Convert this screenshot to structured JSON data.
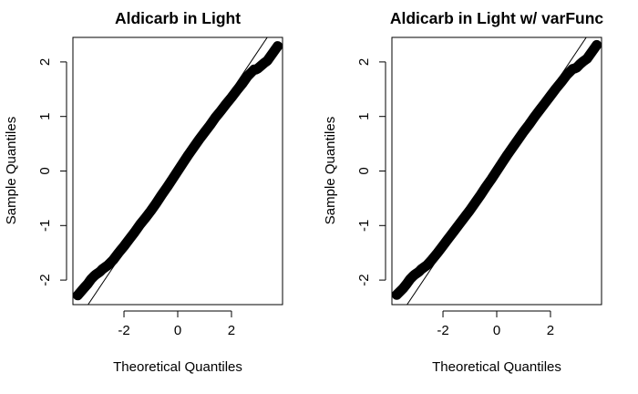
{
  "figure": {
    "background": "#ffffff",
    "ink": "#000000"
  },
  "chart_data": [
    {
      "type": "scatter",
      "subtype": "normal-qq",
      "title": "Aldicarb in Light",
      "xlabel": "Theoretical Quantiles",
      "ylabel": "Sample Quantiles",
      "xlim": [
        -3.9,
        3.9
      ],
      "ylim": [
        -2.45,
        2.45
      ],
      "xticks": [
        -2,
        0,
        2
      ],
      "xtick_labels": [
        "-2",
        "0",
        "2"
      ],
      "yticks": [
        -2,
        -1,
        0,
        1,
        2
      ],
      "ytick_labels": [
        "-2",
        "-1",
        "0",
        "1",
        "2"
      ],
      "grid": false,
      "marker": "open-circle",
      "reference_line": {
        "intercept": 0.002,
        "slope": 0.735
      },
      "series": [
        {
          "x": [
            -3.72,
            -3.48,
            -3.35,
            -3.22,
            -3.12,
            -3.05,
            -2.99,
            -2.93,
            -2.88,
            -2.8,
            -2.6,
            -2.4,
            -2.2,
            -2.0,
            -1.8,
            -1.6,
            -1.4,
            -1.2,
            -1.0,
            -0.8,
            -0.6,
            -0.4,
            -0.2,
            0.0,
            0.2,
            0.4,
            0.6,
            0.8,
            1.0,
            1.2,
            1.4,
            1.6,
            1.8,
            2.0,
            2.2,
            2.4,
            2.6,
            2.76,
            2.84,
            2.9,
            2.98,
            3.1,
            3.22,
            3.33,
            3.72
          ],
          "y": [
            -2.28,
            -2.14,
            -2.07,
            -1.98,
            -1.93,
            -1.9,
            -1.88,
            -1.86,
            -1.84,
            -1.8,
            -1.73,
            -1.63,
            -1.5,
            -1.38,
            -1.25,
            -1.12,
            -0.98,
            -0.86,
            -0.73,
            -0.59,
            -0.44,
            -0.3,
            -0.15,
            0.0,
            0.15,
            0.3,
            0.44,
            0.58,
            0.71,
            0.84,
            0.98,
            1.1,
            1.23,
            1.35,
            1.48,
            1.6,
            1.74,
            1.82,
            1.86,
            1.86,
            1.88,
            1.93,
            1.98,
            2.02,
            2.29
          ]
        }
      ]
    },
    {
      "type": "scatter",
      "subtype": "normal-qq",
      "title": "Aldicarb in Light w/ varFunc",
      "xlabel": "Theoretical Quantiles",
      "ylabel": "Sample Quantiles",
      "xlim": [
        -3.9,
        3.9
      ],
      "ylim": [
        -2.45,
        2.45
      ],
      "xticks": [
        -2,
        0,
        2
      ],
      "xtick_labels": [
        "-2",
        "0",
        "2"
      ],
      "yticks": [
        -2,
        -1,
        0,
        1,
        2
      ],
      "ytick_labels": [
        "-2",
        "-1",
        "0",
        "1",
        "2"
      ],
      "grid": false,
      "marker": "open-circle",
      "reference_line": {
        "intercept": 0.002,
        "slope": 0.735
      },
      "series": [
        {
          "x": [
            -3.72,
            -3.48,
            -3.35,
            -3.22,
            -3.12,
            -3.05,
            -2.99,
            -2.93,
            -2.88,
            -2.8,
            -2.6,
            -2.4,
            -2.2,
            -2.0,
            -1.8,
            -1.6,
            -1.4,
            -1.2,
            -1.0,
            -0.8,
            -0.6,
            -0.4,
            -0.2,
            0.0,
            0.2,
            0.4,
            0.6,
            0.8,
            1.0,
            1.2,
            1.4,
            1.6,
            1.8,
            2.0,
            2.2,
            2.4,
            2.6,
            2.74,
            2.82,
            2.9,
            2.98,
            3.1,
            3.22,
            3.36,
            3.72
          ],
          "y": [
            -2.27,
            -2.15,
            -2.07,
            -1.98,
            -1.93,
            -1.9,
            -1.88,
            -1.86,
            -1.84,
            -1.8,
            -1.73,
            -1.62,
            -1.5,
            -1.37,
            -1.24,
            -1.11,
            -0.98,
            -0.85,
            -0.72,
            -0.58,
            -0.44,
            -0.29,
            -0.15,
            0.0,
            0.15,
            0.3,
            0.44,
            0.58,
            0.72,
            0.85,
            0.99,
            1.12,
            1.25,
            1.38,
            1.51,
            1.63,
            1.76,
            1.83,
            1.87,
            1.88,
            1.9,
            1.96,
            2.01,
            2.06,
            2.31
          ]
        }
      ]
    }
  ]
}
